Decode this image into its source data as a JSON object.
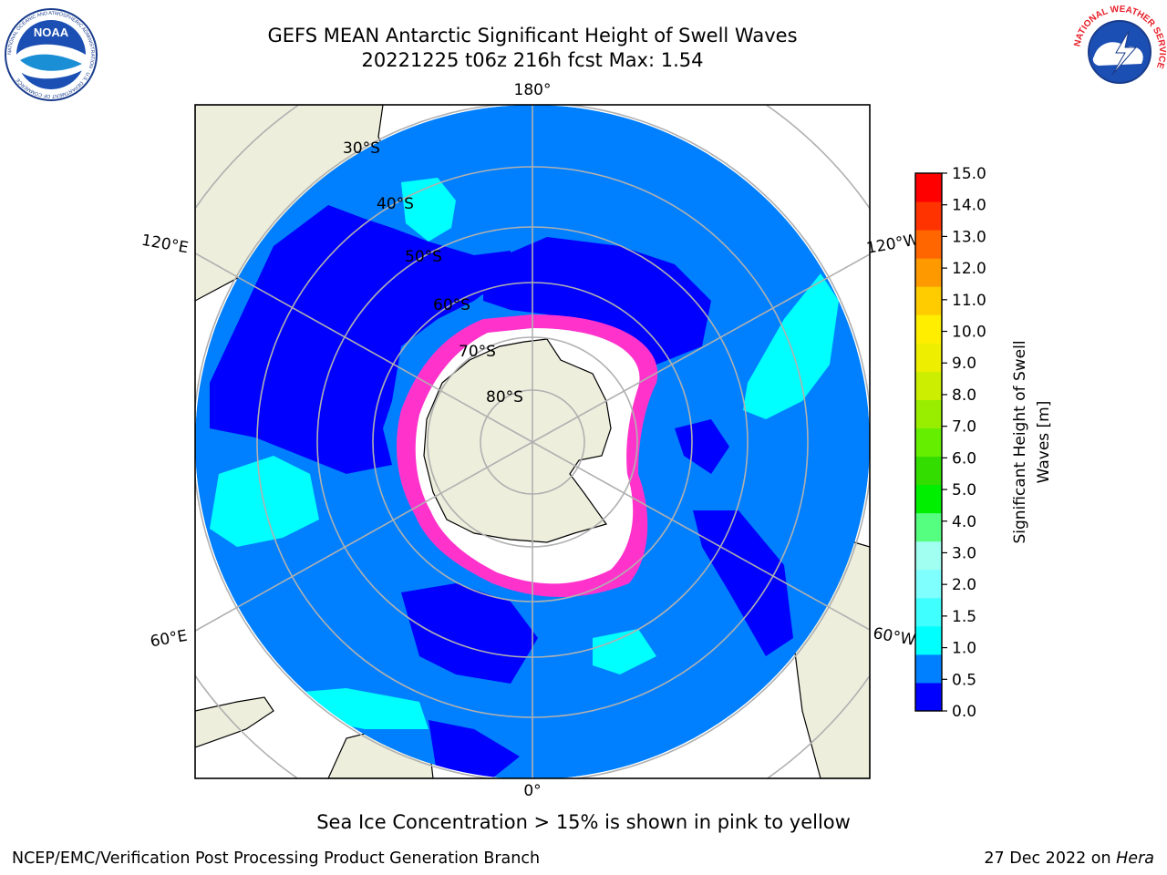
{
  "title": {
    "line1": "GEFS MEAN Antarctic Significant Height of Swell Waves",
    "line2": "20221225 t06z 216h fcst   Max: 1.54"
  },
  "map": {
    "projection": "south-polar-stereographic",
    "longitude_labels": [
      "180°",
      "120°E",
      "120°W",
      "60°E",
      "60°W",
      "0°"
    ],
    "latitude_labels": [
      "30°S",
      "40°S",
      "50°S",
      "60°S",
      "70°S",
      "80°S"
    ],
    "colors": {
      "land": "#eeeedd",
      "ocean_0_0.5": "#0000ff",
      "ocean_0.5_1.0": "#0080ff",
      "ocean_1.0_1.5": "#00ffff",
      "sea_ice": "#ff33cc",
      "graticule": "#b0b0b0"
    }
  },
  "colorbar": {
    "label_line1": "Significant Height of Swell",
    "label_line2": "Waves [m]",
    "ticks": [
      "15.0",
      "14.0",
      "13.0",
      "12.0",
      "11.0",
      "10.0",
      "9.0",
      "8.0",
      "7.0",
      "6.0",
      "5.0",
      "4.0",
      "3.0",
      "2.0",
      "1.5",
      "1.0",
      "0.5",
      "0.0"
    ],
    "bin_colors": [
      "#0000ff",
      "#0080ff",
      "#00ffff",
      "#40ffff",
      "#80ffff",
      "#a0fff0",
      "#55ff80",
      "#00ee00",
      "#33dd00",
      "#66ee00",
      "#99ee00",
      "#ccee00",
      "#eeee00",
      "#ffee00",
      "#ffcc00",
      "#ff9900",
      "#ff6600",
      "#ff3300",
      "#ff0000"
    ]
  },
  "note": "Sea Ice Concentration > 15% is shown in pink to yellow",
  "footer": {
    "left": "NCEP/EMC/Verification Post Processing Product Generation Branch",
    "right_prefix": "27 Dec 2022 on ",
    "right_machine": "Hera"
  },
  "logos": {
    "left_text": "NOAA",
    "left_ring": "NATIONAL OCEANIC AND ATMOSPHERIC ADMINISTRATION · U.S. DEPARTMENT OF COMMERCE",
    "right_ring": "NATIONAL WEATHER SERVICE"
  }
}
